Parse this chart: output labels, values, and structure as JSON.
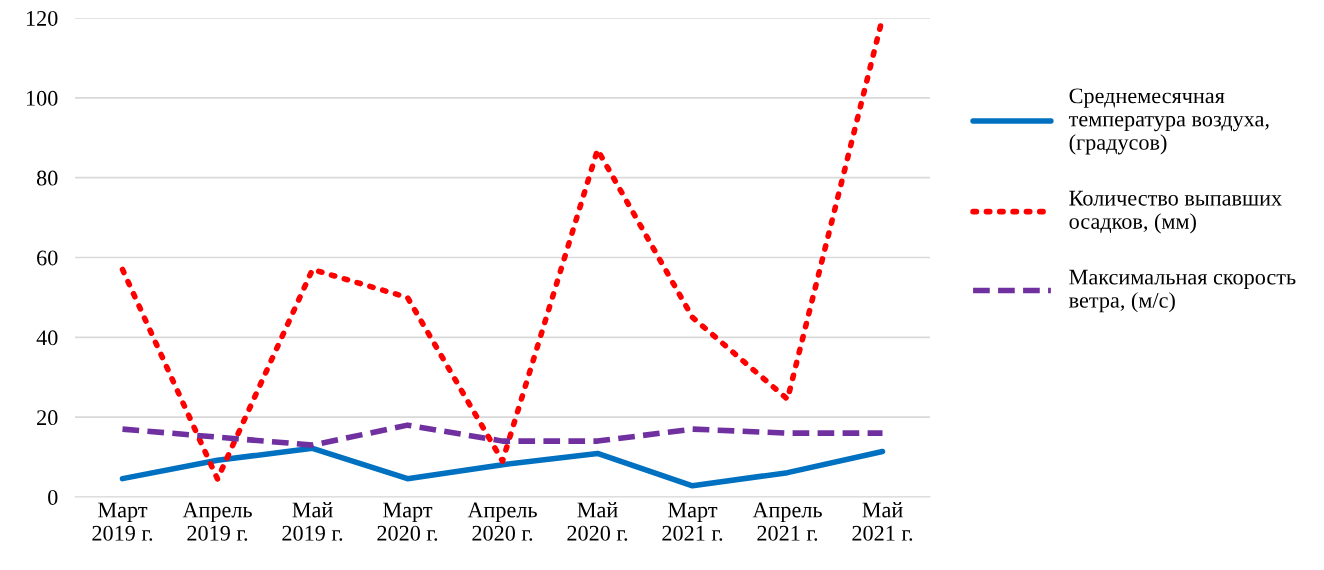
{
  "chart_data": {
    "type": "line",
    "categories": [
      "Март 2019 г.",
      "Апрель 2019 г.",
      "Май 2019 г.",
      "Март 2020 г.",
      "Апрель 2020 г.",
      "Май 2020 г.",
      "Март 2021 г.",
      "Апрель 2021 г.",
      "Май 2021 г."
    ],
    "series": [
      {
        "name": "Среднемесячная температура воздуха, (градусов)",
        "color": "#0070c0",
        "line_style": "solid",
        "values": [
          4.6,
          9.2,
          12.2,
          4.6,
          8.1,
          10.9,
          2.8,
          6.1,
          11.4
        ]
      },
      {
        "name": "Количество выпавших осадков, (мм)",
        "color": "#ff0000",
        "line_style": "dotted",
        "values": [
          57,
          4.5,
          57,
          50,
          9,
          87,
          45,
          24.5,
          120
        ]
      },
      {
        "name": "Максимальная скорость ветра, (м/с)",
        "color": "#7030a0",
        "line_style": "dashed",
        "values": [
          17,
          15,
          13,
          18,
          14,
          14,
          17,
          16,
          16
        ]
      }
    ],
    "ylim": [
      0,
      120
    ],
    "yticks": [
      0,
      20,
      40,
      60,
      80,
      100,
      120
    ],
    "grid": "y",
    "legend": "right",
    "marker": "none"
  }
}
